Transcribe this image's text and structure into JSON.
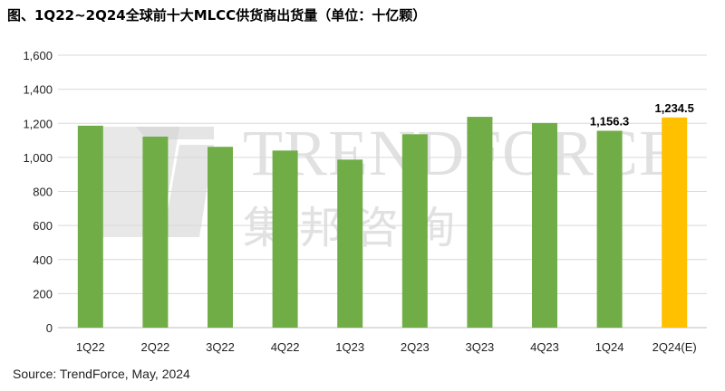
{
  "title": "图、1Q22~2Q24全球前十大MLCC供货商出货量（单位：十亿颗）",
  "source": "Source: TrendForce, May, 2024",
  "watermark": {
    "latin": "TRENDFORCE",
    "cjk": "集邦咨询"
  },
  "colors": {
    "actual": "#70AD47",
    "estimate": "#FFC000",
    "grid": "#d9d9d9"
  },
  "chart_data": {
    "type": "bar",
    "categories": [
      "1Q22",
      "2Q22",
      "3Q22",
      "4Q22",
      "1Q23",
      "2Q23",
      "3Q23",
      "4Q23",
      "1Q24",
      "2Q24(E)"
    ],
    "values": [
      1186,
      1122,
      1062,
      1040,
      987,
      1136,
      1238,
      1202,
      1156.3,
      1234.5
    ],
    "data_labels": [
      "",
      "",
      "",
      "",
      "",
      "",
      "",
      "",
      "1,156.3",
      "1,234.5"
    ],
    "estimate_index": 9,
    "yticks": [
      "0",
      "200",
      "400",
      "600",
      "800",
      "1,000",
      "1,200",
      "1,400",
      "1,600"
    ],
    "ylim": [
      0,
      1600
    ],
    "grid": true,
    "legend": "none"
  }
}
